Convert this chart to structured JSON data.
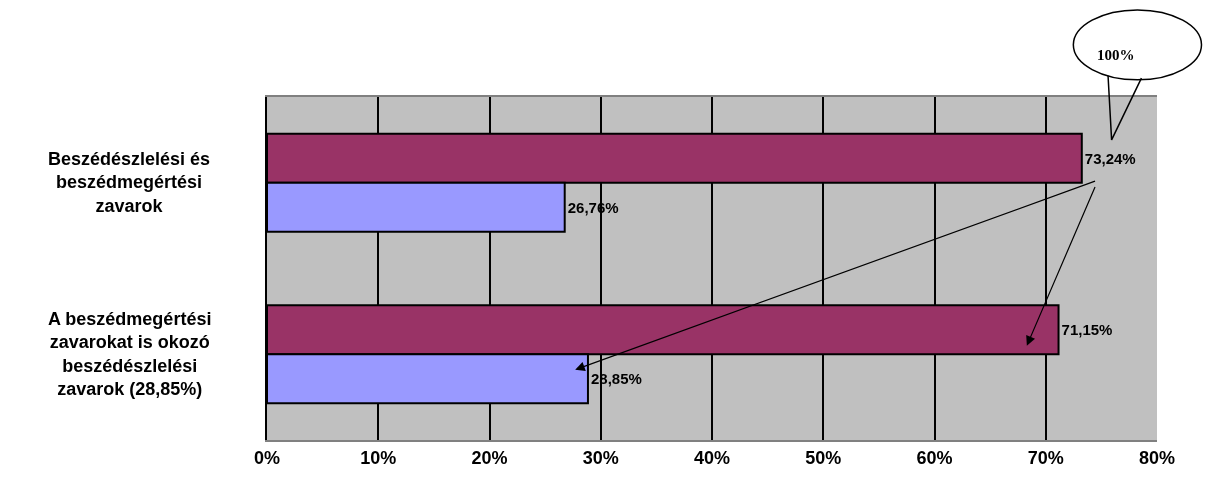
{
  "chart_data": {
    "type": "bar",
    "orientation": "horizontal",
    "categories": [
      "Beszédészlelési és beszédmegértési zavarok",
      "A beszédmegértési zavarokat is okozó beszédészlelési zavarok (28,85%)"
    ],
    "series": [
      {
        "color": "#993366",
        "values": [
          73.24,
          71.15
        ],
        "value_labels": [
          "73,24%",
          "71,15%"
        ]
      },
      {
        "color": "#9999ff",
        "values": [
          26.76,
          28.85
        ],
        "value_labels": [
          "26,76%",
          "28,85%"
        ]
      }
    ],
    "xlim": [
      0,
      80
    ],
    "xticks": [
      {
        "value": 0,
        "label": "0%"
      },
      {
        "value": 10,
        "label": "10%"
      },
      {
        "value": 20,
        "label": "20%"
      },
      {
        "value": 30,
        "label": "30%"
      },
      {
        "value": 40,
        "label": "40%"
      },
      {
        "value": 50,
        "label": "50%"
      },
      {
        "value": 60,
        "label": "60%"
      },
      {
        "value": 70,
        "label": "70%"
      },
      {
        "value": 80,
        "label": "80%"
      }
    ],
    "grid": "x",
    "legend": false,
    "annotations": [
      "100%"
    ]
  }
}
